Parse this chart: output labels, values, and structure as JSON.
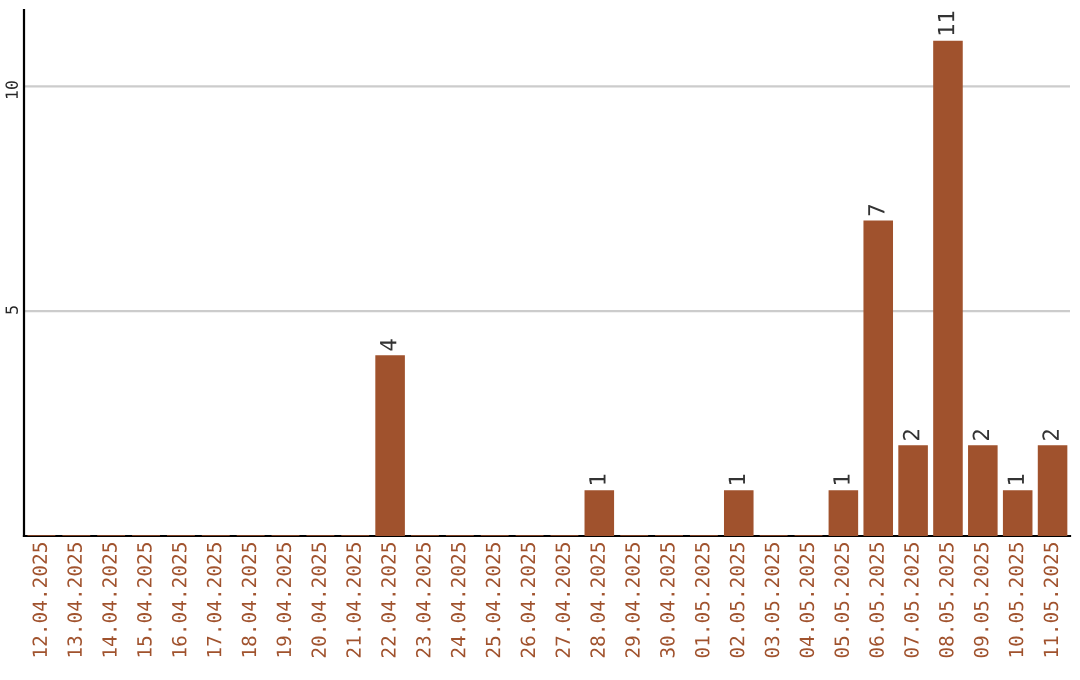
{
  "chart_data": {
    "type": "bar",
    "categories": [
      "12.04.2025",
      "13.04.2025",
      "14.04.2025",
      "15.04.2025",
      "16.04.2025",
      "17.04.2025",
      "18.04.2025",
      "19.04.2025",
      "20.04.2025",
      "21.04.2025",
      "22.04.2025",
      "23.04.2025",
      "24.04.2025",
      "25.04.2025",
      "26.04.2025",
      "27.04.2025",
      "28.04.2025",
      "29.04.2025",
      "30.04.2025",
      "01.05.2025",
      "02.05.2025",
      "03.05.2025",
      "04.05.2025",
      "05.05.2025",
      "06.05.2025",
      "07.05.2025",
      "08.05.2025",
      "09.05.2025",
      "10.05.2025",
      "11.05.2025"
    ],
    "values": [
      0,
      0,
      0,
      0,
      0,
      0,
      0,
      0,
      0,
      0,
      4,
      0,
      0,
      0,
      0,
      0,
      1,
      0,
      0,
      0,
      1,
      0,
      0,
      1,
      7,
      2,
      11,
      2,
      1,
      2
    ],
    "value_labels": [
      null,
      null,
      null,
      null,
      null,
      null,
      null,
      null,
      null,
      null,
      "4",
      null,
      null,
      null,
      null,
      null,
      "1",
      null,
      null,
      null,
      "1",
      null,
      null,
      "1",
      "7",
      "2",
      "11",
      "2",
      "1",
      "2"
    ],
    "color": "#a0522d",
    "ylim": [
      0,
      11.7
    ],
    "yticks": [
      5,
      10
    ],
    "grid": "y",
    "legend": false
  }
}
